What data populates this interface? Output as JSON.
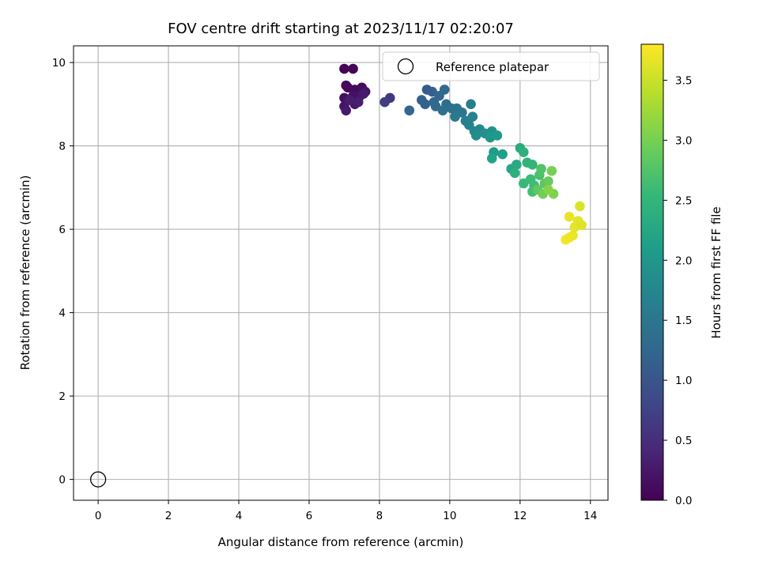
{
  "chart_data": {
    "type": "scatter",
    "title": "FOV centre drift starting at 2023/11/17 02:20:07",
    "xlabel": "Angular distance from reference (arcmin)",
    "ylabel": "Rotation from reference (arcmin)",
    "xlim": [
      -0.7,
      14.5
    ],
    "ylim": [
      -0.5,
      10.4
    ],
    "xticks": [
      0,
      2,
      4,
      6,
      8,
      10,
      12,
      14
    ],
    "yticks": [
      0,
      2,
      4,
      6,
      8,
      10
    ],
    "grid": true,
    "legend": {
      "placement": "top-right",
      "entries": [
        "Reference platepar"
      ]
    },
    "colorbar": {
      "label": "Hours from first FF file",
      "range": [
        0.0,
        3.8
      ],
      "ticks": [
        "0.0",
        "0.5",
        "1.0",
        "1.5",
        "2.0",
        "2.5",
        "3.0",
        "3.5"
      ],
      "colormap": "viridis"
    },
    "reference_point": {
      "x": 0,
      "y": 0
    },
    "points": [
      {
        "x": 7.0,
        "y": 9.85,
        "h": 0.02
      },
      {
        "x": 7.25,
        "y": 9.85,
        "h": 0.04
      },
      {
        "x": 7.05,
        "y": 9.45,
        "h": 0.06
      },
      {
        "x": 7.1,
        "y": 9.4,
        "h": 0.08
      },
      {
        "x": 7.3,
        "y": 9.35,
        "h": 0.1
      },
      {
        "x": 7.5,
        "y": 9.4,
        "h": 0.12
      },
      {
        "x": 7.0,
        "y": 9.15,
        "h": 0.14
      },
      {
        "x": 7.25,
        "y": 9.2,
        "h": 0.16
      },
      {
        "x": 7.45,
        "y": 9.2,
        "h": 0.18
      },
      {
        "x": 7.6,
        "y": 9.3,
        "h": 0.2
      },
      {
        "x": 7.0,
        "y": 8.95,
        "h": 0.22
      },
      {
        "x": 7.3,
        "y": 9.0,
        "h": 0.24
      },
      {
        "x": 7.05,
        "y": 8.85,
        "h": 0.26
      },
      {
        "x": 7.55,
        "y": 9.25,
        "h": 0.28
      },
      {
        "x": 7.15,
        "y": 9.1,
        "h": 0.3
      },
      {
        "x": 7.4,
        "y": 9.05,
        "h": 0.32
      },
      {
        "x": 8.3,
        "y": 9.15,
        "h": 0.6
      },
      {
        "x": 8.15,
        "y": 9.05,
        "h": 0.7
      },
      {
        "x": 8.85,
        "y": 8.85,
        "h": 1.25
      },
      {
        "x": 9.2,
        "y": 9.1,
        "h": 1.15
      },
      {
        "x": 9.35,
        "y": 9.35,
        "h": 1.1
      },
      {
        "x": 9.5,
        "y": 9.3,
        "h": 1.15
      },
      {
        "x": 9.3,
        "y": 9.0,
        "h": 1.2
      },
      {
        "x": 9.55,
        "y": 9.05,
        "h": 1.25
      },
      {
        "x": 9.7,
        "y": 9.2,
        "h": 1.25
      },
      {
        "x": 9.85,
        "y": 9.35,
        "h": 1.3
      },
      {
        "x": 9.6,
        "y": 8.95,
        "h": 1.3
      },
      {
        "x": 9.9,
        "y": 9.0,
        "h": 1.35
      },
      {
        "x": 10.05,
        "y": 8.9,
        "h": 1.4
      },
      {
        "x": 9.8,
        "y": 8.85,
        "h": 1.4
      },
      {
        "x": 10.2,
        "y": 8.9,
        "h": 1.45
      },
      {
        "x": 10.35,
        "y": 8.8,
        "h": 1.5
      },
      {
        "x": 10.15,
        "y": 8.7,
        "h": 1.55
      },
      {
        "x": 10.45,
        "y": 8.6,
        "h": 1.6
      },
      {
        "x": 10.6,
        "y": 9.0,
        "h": 1.6
      },
      {
        "x": 10.65,
        "y": 8.7,
        "h": 1.65
      },
      {
        "x": 10.55,
        "y": 8.5,
        "h": 1.7
      },
      {
        "x": 10.7,
        "y": 8.35,
        "h": 1.75
      },
      {
        "x": 10.85,
        "y": 8.4,
        "h": 1.8
      },
      {
        "x": 10.75,
        "y": 8.25,
        "h": 1.85
      },
      {
        "x": 11.0,
        "y": 8.3,
        "h": 1.9
      },
      {
        "x": 11.2,
        "y": 8.35,
        "h": 1.95
      },
      {
        "x": 11.15,
        "y": 8.2,
        "h": 2.0
      },
      {
        "x": 11.35,
        "y": 8.25,
        "h": 2.05
      },
      {
        "x": 11.25,
        "y": 7.85,
        "h": 2.1
      },
      {
        "x": 11.5,
        "y": 7.8,
        "h": 2.15
      },
      {
        "x": 11.2,
        "y": 7.7,
        "h": 2.2
      },
      {
        "x": 11.75,
        "y": 7.45,
        "h": 2.25
      },
      {
        "x": 11.9,
        "y": 7.55,
        "h": 2.3
      },
      {
        "x": 12.0,
        "y": 7.95,
        "h": 2.35
      },
      {
        "x": 12.1,
        "y": 7.85,
        "h": 2.4
      },
      {
        "x": 11.85,
        "y": 7.35,
        "h": 2.4
      },
      {
        "x": 12.2,
        "y": 7.6,
        "h": 2.45
      },
      {
        "x": 12.35,
        "y": 7.55,
        "h": 2.5
      },
      {
        "x": 12.1,
        "y": 7.1,
        "h": 2.55
      },
      {
        "x": 12.3,
        "y": 7.2,
        "h": 2.6
      },
      {
        "x": 12.4,
        "y": 7.05,
        "h": 2.6
      },
      {
        "x": 12.35,
        "y": 6.9,
        "h": 2.65
      },
      {
        "x": 12.55,
        "y": 7.3,
        "h": 2.7
      },
      {
        "x": 12.6,
        "y": 7.45,
        "h": 2.75
      },
      {
        "x": 12.7,
        "y": 7.1,
        "h": 2.8
      },
      {
        "x": 12.5,
        "y": 6.95,
        "h": 2.85
      },
      {
        "x": 12.8,
        "y": 7.15,
        "h": 2.9
      },
      {
        "x": 12.65,
        "y": 6.85,
        "h": 2.95
      },
      {
        "x": 12.9,
        "y": 7.4,
        "h": 3.0
      },
      {
        "x": 12.95,
        "y": 6.85,
        "h": 3.05
      },
      {
        "x": 12.8,
        "y": 6.95,
        "h": 3.1
      },
      {
        "x": 13.3,
        "y": 5.75,
        "h": 3.75
      },
      {
        "x": 13.4,
        "y": 5.8,
        "h": 3.72
      },
      {
        "x": 13.5,
        "y": 5.85,
        "h": 3.7
      },
      {
        "x": 13.4,
        "y": 6.3,
        "h": 3.68
      },
      {
        "x": 13.55,
        "y": 6.05,
        "h": 3.66
      },
      {
        "x": 13.65,
        "y": 6.2,
        "h": 3.64
      },
      {
        "x": 13.75,
        "y": 6.1,
        "h": 3.62
      },
      {
        "x": 13.7,
        "y": 6.55,
        "h": 3.6
      }
    ]
  }
}
